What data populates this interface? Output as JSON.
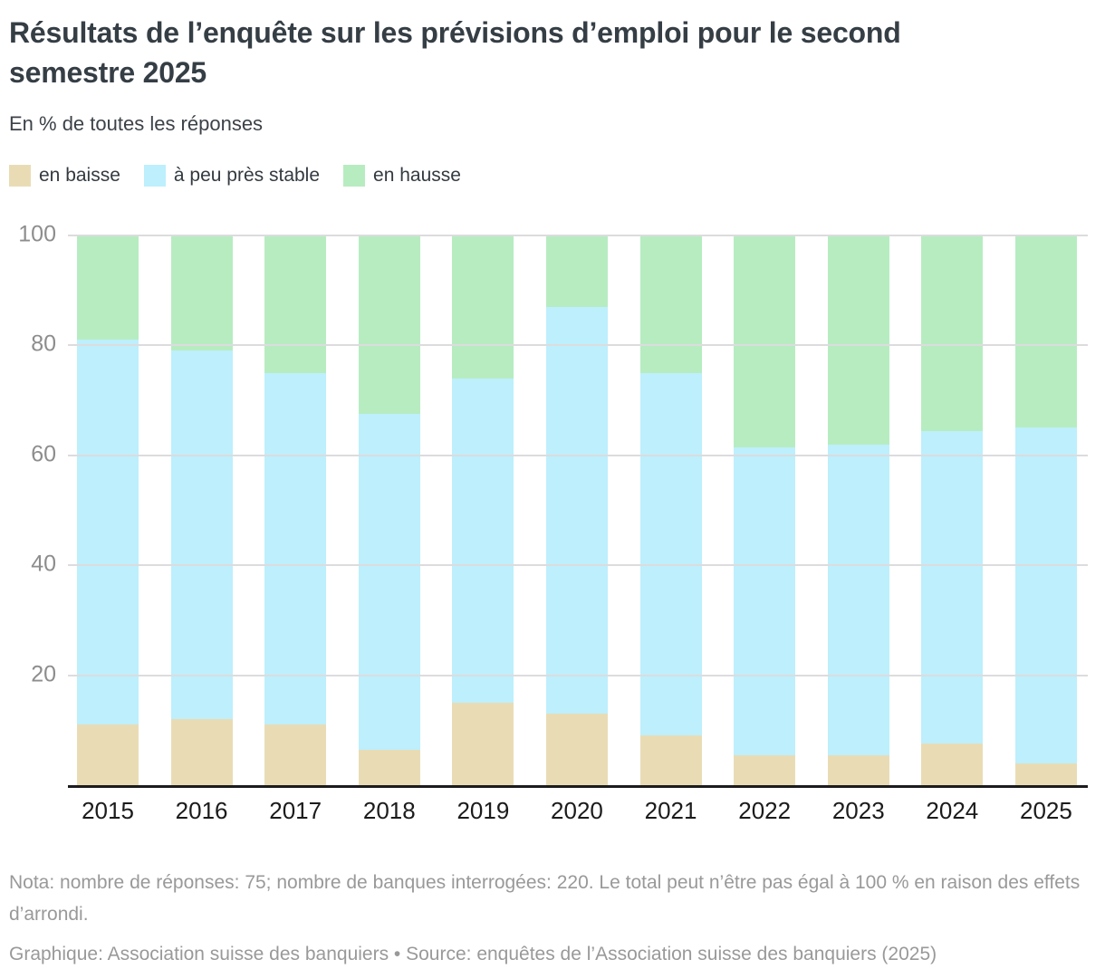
{
  "header": {
    "title": "Résultats de l’enquête sur les prévisions d’emploi pour le second semestre 2025",
    "subtitle": "En % de toutes les réponses"
  },
  "legend": [
    {
      "label": "en baisse",
      "color": "#e9dcb5",
      "slug": "en-baisse"
    },
    {
      "label": "à peu près stable",
      "color": "#bdeffd",
      "slug": "a-peu-pres-stable"
    },
    {
      "label": "en hausse",
      "color": "#b7ecc1",
      "slug": "en-hausse"
    }
  ],
  "chart_data": {
    "type": "bar",
    "stacked": true,
    "title": "Résultats de l’enquête sur les prévisions d’emploi pour le second semestre 2025",
    "subtitle": "En % de toutes les réponses",
    "unit": "%",
    "categories": [
      "2015",
      "2016",
      "2017",
      "2018",
      "2019",
      "2020",
      "2021",
      "2022",
      "2023",
      "2024",
      "2025"
    ],
    "series": [
      {
        "name": "en baisse",
        "slug": "en-baisse",
        "color": "#e9dcb5",
        "values": [
          11,
          12,
          11,
          6.5,
          15,
          13,
          9,
          5.5,
          5.5,
          7.5,
          4
        ]
      },
      {
        "name": "à peu près stable",
        "slug": "a-peu-pres-stable",
        "color": "#bdeffd",
        "values": [
          70,
          67,
          64,
          61,
          59,
          74,
          66,
          56,
          56.5,
          57,
          61
        ]
      },
      {
        "name": "en hausse",
        "slug": "en-hausse",
        "color": "#b7ecc1",
        "values": [
          19,
          21,
          25,
          32.5,
          26,
          13,
          25,
          38.5,
          38,
          35.5,
          35
        ]
      }
    ],
    "xlabel": "",
    "ylabel": "En % de toutes les réponses",
    "ylim": [
      0,
      100
    ],
    "yticks": [
      20,
      40,
      60,
      80,
      100
    ],
    "grid": true,
    "legend_position": "top"
  },
  "footer": {
    "nota": "Nota: nombre de réponses: 75; nombre de banques interrogées: 220. Le total peut n’être pas égal à 100 % en raison des effets d’arrondi.",
    "credit": "Graphique: Association suisse des banquiers • Source: enquêtes de l’Association suisse des banquiers (2025)"
  },
  "colors": {
    "baisse": "#e9dcb5",
    "stable": "#bdeffd",
    "hausse": "#b7ecc1",
    "gridline": "#dcdcde",
    "axis": "#1c1c1e",
    "ytick_text": "#8d8d8d",
    "xtick_text": "#1b1b1b",
    "title_text": "#353e45",
    "footer_text": "#999999"
  }
}
